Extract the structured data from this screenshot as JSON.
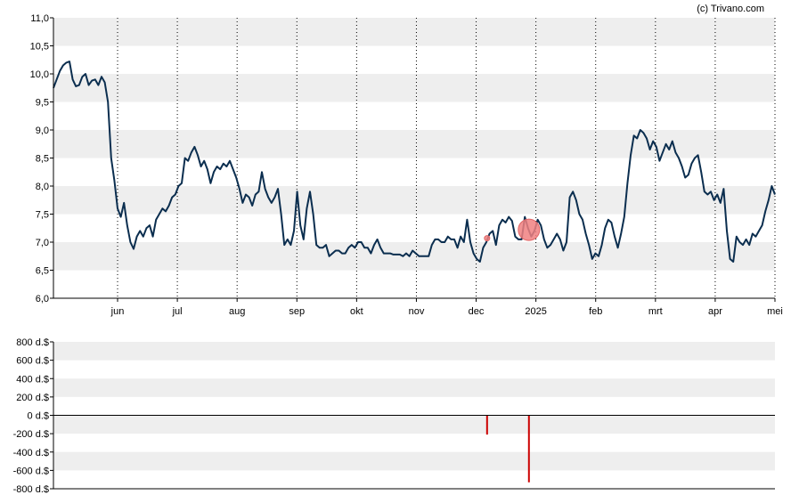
{
  "credit": "(c) Trivano.com",
  "colors": {
    "line": "#0b2e4f",
    "band": "#eeeeee",
    "marker": "#f08080",
    "volume": "#cc0000",
    "axis": "#000000"
  },
  "chart_data": [
    {
      "type": "line",
      "title": "",
      "ylim": [
        6.0,
        11.0
      ],
      "y_ticks": [
        "6,0",
        "6,5",
        "7,0",
        "7,5",
        "8,0",
        "8,5",
        "9,0",
        "9,5",
        "10,0",
        "10,5",
        "11,0"
      ],
      "x_ticks": [
        "jun",
        "jul",
        "aug",
        "sep",
        "okt",
        "nov",
        "dec",
        "2025",
        "feb",
        "mrt",
        "apr",
        "mei"
      ],
      "grid": true,
      "series": [
        {
          "values": [
            9.75,
            9.9,
            10.05,
            10.15,
            10.2,
            10.22,
            9.9,
            9.78,
            9.8,
            9.95,
            10.0,
            9.8,
            9.88,
            9.9,
            9.8,
            9.95,
            9.85,
            9.5,
            8.5,
            8.1,
            7.6,
            7.45,
            7.7,
            7.3,
            7.0,
            6.88,
            7.1,
            7.2,
            7.1,
            7.25,
            7.3,
            7.1,
            7.4,
            7.5,
            7.6,
            7.55,
            7.65,
            7.8,
            7.85,
            8.0,
            8.05,
            8.5,
            8.45,
            8.6,
            8.7,
            8.55,
            8.35,
            8.45,
            8.3,
            8.05,
            8.25,
            8.35,
            8.3,
            8.4,
            8.35,
            8.45,
            8.3,
            8.15,
            7.95,
            7.7,
            7.85,
            7.8,
            7.65,
            7.85,
            7.9,
            8.25,
            7.95,
            7.8,
            7.7,
            7.8,
            7.95,
            7.5,
            6.95,
            7.05,
            6.95,
            7.2,
            7.9,
            7.3,
            7.05,
            7.6,
            7.9,
            7.5,
            6.95,
            6.9,
            6.9,
            6.95,
            6.75,
            6.8,
            6.85,
            6.85,
            6.8,
            6.8,
            6.9,
            6.95,
            6.9,
            7.0,
            7.0,
            6.9,
            6.9,
            6.8,
            6.95,
            7.05,
            6.9,
            6.8,
            6.8,
            6.8,
            6.78,
            6.78,
            6.78,
            6.75,
            6.8,
            6.75,
            6.85,
            6.8,
            6.75,
            6.75,
            6.75,
            6.75,
            6.95,
            7.05,
            7.05,
            7.0,
            7.0,
            7.1,
            7.05,
            7.05,
            6.9,
            7.1,
            7.0,
            7.4,
            7.0,
            6.8,
            6.7,
            6.65,
            6.9,
            7.0,
            7.15,
            7.2,
            6.95,
            7.3,
            7.4,
            7.35,
            7.45,
            7.38,
            7.1,
            7.05,
            7.05,
            7.45,
            7.25,
            7.1,
            7.2,
            7.4,
            7.3,
            7.05,
            6.9,
            6.95,
            7.05,
            7.15,
            7.05,
            6.85,
            7.0,
            7.8,
            7.9,
            7.75,
            7.5,
            7.4,
            7.15,
            6.95,
            6.7,
            6.8,
            6.75,
            6.95,
            7.25,
            7.4,
            7.35,
            7.1,
            6.9,
            7.15,
            7.45,
            8.05,
            8.55,
            8.9,
            8.85,
            9.0,
            8.95,
            8.85,
            8.65,
            8.8,
            8.7,
            8.45,
            8.6,
            8.75,
            8.65,
            8.8,
            8.6,
            8.5,
            8.35,
            8.15,
            8.2,
            8.4,
            8.5,
            8.55,
            8.25,
            7.9,
            7.85,
            7.9,
            7.75,
            7.85,
            7.7,
            7.95,
            7.2,
            6.7,
            6.65,
            7.1,
            7.0,
            6.95,
            7.05,
            6.95,
            7.15,
            7.1,
            7.2,
            7.3,
            7.55,
            7.75,
            8.0,
            7.85
          ]
        }
      ],
      "markers": [
        {
          "value": 7.07,
          "position": 0.601,
          "size": "small"
        },
        {
          "value": 7.22,
          "position": 0.659,
          "size": "large"
        }
      ]
    },
    {
      "type": "bar",
      "title": "",
      "ylim": [
        -800,
        800
      ],
      "y_ticks": [
        "800 d.$",
        "600 d.$",
        "400 d.$",
        "200 d.$",
        "0 d.$",
        "-200 d.$",
        "-400 d.$",
        "-600 d.$",
        "-800 d.$"
      ],
      "bars": [
        {
          "position": 0.601,
          "value": -210
        },
        {
          "position": 0.659,
          "value": -730
        }
      ]
    }
  ]
}
